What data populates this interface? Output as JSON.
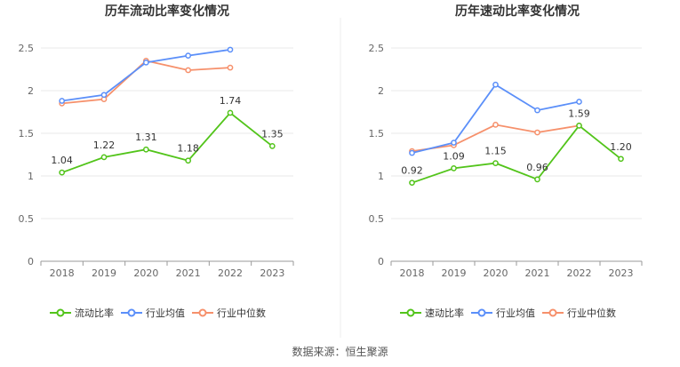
{
  "chart_data": [
    {
      "type": "line",
      "title": "历年流动比率变化情况",
      "categories": [
        "2018",
        "2019",
        "2020",
        "2021",
        "2022",
        "2023"
      ],
      "y_ticks": [
        "0",
        "0.5",
        "1",
        "1.5",
        "2",
        "2.5"
      ],
      "ylim": [
        0,
        2.5
      ],
      "grid": true,
      "legend_position": "bottom",
      "series": [
        {
          "name": "流动比率",
          "color": "#52c41a",
          "values": [
            1.04,
            1.22,
            1.31,
            1.18,
            1.74,
            1.35
          ],
          "labels": [
            "1.04",
            "1.22",
            "1.31",
            "1.18",
            "1.74",
            "1.35"
          ]
        },
        {
          "name": "行业均值",
          "color": "#5b8ff9",
          "values": [
            1.88,
            1.95,
            2.33,
            2.41,
            2.48,
            null
          ]
        },
        {
          "name": "行业中位数",
          "color": "#f6906b",
          "values": [
            1.85,
            1.9,
            2.35,
            2.24,
            2.27,
            null
          ]
        }
      ]
    },
    {
      "type": "line",
      "title": "历年速动比率变化情况",
      "categories": [
        "2018",
        "2019",
        "2020",
        "2021",
        "2022",
        "2023"
      ],
      "y_ticks": [
        "0",
        "0.5",
        "1",
        "1.5",
        "2",
        "2.5"
      ],
      "ylim": [
        0,
        2.5
      ],
      "grid": true,
      "legend_position": "bottom",
      "series": [
        {
          "name": "速动比率",
          "color": "#52c41a",
          "values": [
            0.92,
            1.09,
            1.15,
            0.96,
            1.59,
            1.2
          ],
          "labels": [
            "0.92",
            "1.09",
            "1.15",
            "0.96",
            "1.59",
            "1.20"
          ]
        },
        {
          "name": "行业均值",
          "color": "#5b8ff9",
          "values": [
            1.27,
            1.39,
            2.07,
            1.77,
            1.87,
            null
          ]
        },
        {
          "name": "行业中位数",
          "color": "#f6906b",
          "values": [
            1.29,
            1.36,
            1.6,
            1.51,
            1.59,
            null
          ]
        }
      ]
    }
  ],
  "source": "数据来源：恒生聚源"
}
